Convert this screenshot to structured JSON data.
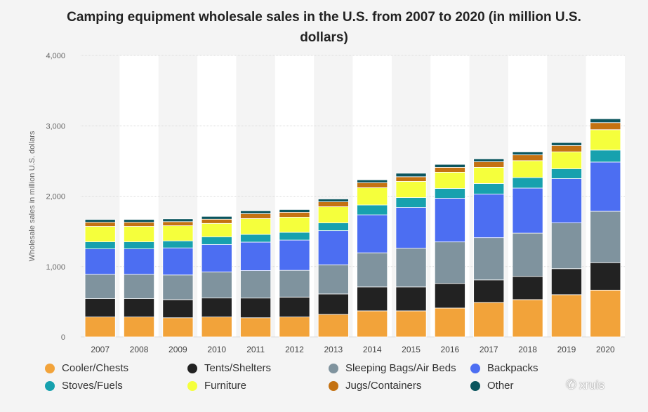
{
  "chart_data": {
    "type": "bar",
    "stacked": true,
    "title": "Camping equipment wholesale sales in the U.S. from 2007 to 2020 (in million U.S. dollars)",
    "ylabel": "Wholesale sales in million U.S. dollars",
    "xlabel": "",
    "ylim": [
      0,
      4000
    ],
    "yticks": [
      "0",
      "1,000",
      "2,000",
      "3,000",
      "4,000"
    ],
    "grid": true,
    "legend_position": "bottom",
    "categories": [
      "2007",
      "2008",
      "2009",
      "2010",
      "2011",
      "2012",
      "2013",
      "2014",
      "2015",
      "2016",
      "2017",
      "2018",
      "2019",
      "2020"
    ],
    "series": [
      {
        "name": "Cooler/Chests",
        "color": "#f2a33a",
        "values": [
          283,
          283,
          272,
          283,
          272,
          283,
          320,
          370,
          370,
          410,
          490,
          530,
          600,
          665
        ]
      },
      {
        "name": "Tents/Shelters",
        "color": "#222222",
        "values": [
          260,
          260,
          258,
          270,
          280,
          283,
          290,
          340,
          340,
          350,
          320,
          330,
          370,
          390
        ]
      },
      {
        "name": "Sleeping Bags/Air Beds",
        "color": "#7f939e",
        "values": [
          345,
          345,
          350,
          370,
          390,
          380,
          415,
          485,
          550,
          590,
          600,
          615,
          650,
          730
        ]
      },
      {
        "name": "Backpacks",
        "color": "#4c6ef2",
        "values": [
          363,
          363,
          385,
          390,
          405,
          430,
          485,
          540,
          580,
          620,
          620,
          640,
          630,
          700
        ]
      },
      {
        "name": "Stoves/Fuels",
        "color": "#17a1ae",
        "values": [
          100,
          100,
          100,
          110,
          110,
          110,
          110,
          140,
          140,
          140,
          150,
          150,
          140,
          170
        ]
      },
      {
        "name": "Furniture",
        "color": "#f5ff3c",
        "values": [
          220,
          220,
          215,
          190,
          225,
          215,
          230,
          245,
          230,
          230,
          230,
          240,
          240,
          290
        ]
      },
      {
        "name": "Jugs/Containers",
        "color": "#c47212",
        "values": [
          58,
          58,
          58,
          60,
          70,
          70,
          70,
          72,
          66,
          70,
          80,
          82,
          90,
          100
        ]
      },
      {
        "name": "Other",
        "color": "#0b555e",
        "values": [
          40,
          40,
          40,
          40,
          40,
          40,
          40,
          40,
          50,
          42,
          40,
          42,
          42,
          55
        ]
      }
    ]
  },
  "legend": {
    "items": [
      "Cooler/Chests",
      "Tents/Shelters",
      "Sleeping Bags/Air Beds",
      "Backpacks",
      "Stoves/Fuels",
      "Furniture",
      "Jugs/Containers",
      "Other"
    ],
    "colors": [
      "#f2a33a",
      "#222222",
      "#7f939e",
      "#4c6ef2",
      "#17a1ae",
      "#f5ff3c",
      "#c47212",
      "#0b555e"
    ]
  },
  "watermark": {
    "text": "xruis",
    "icon": "wechat-icon"
  }
}
